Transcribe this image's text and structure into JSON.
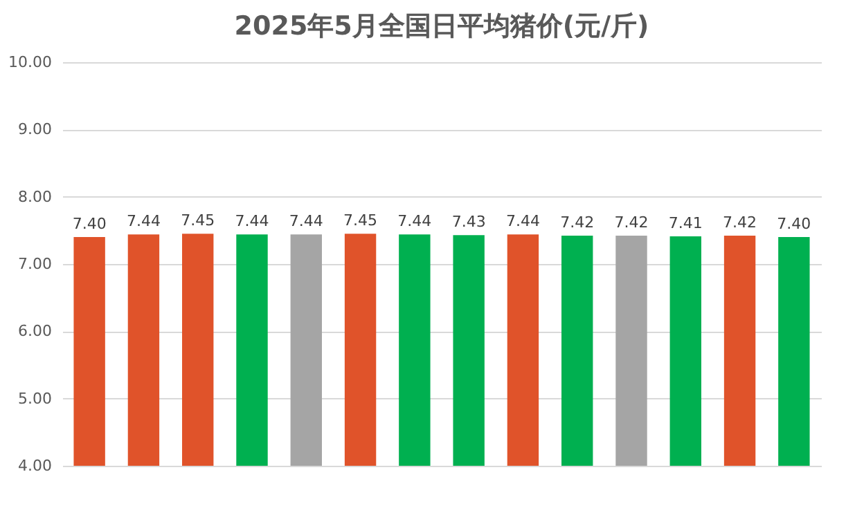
{
  "chart_data": {
    "type": "bar",
    "title": "2025年5月全国日平均猪价(元/斤)",
    "categories": [
      null,
      null,
      null,
      null,
      null,
      null,
      null,
      null,
      null,
      null,
      null,
      null,
      null,
      null
    ],
    "values": [
      7.4,
      7.44,
      7.45,
      7.44,
      7.44,
      7.45,
      7.44,
      7.43,
      7.44,
      7.42,
      7.42,
      7.41,
      7.42,
      7.4
    ],
    "value_labels": [
      "7.40",
      "7.44",
      "7.45",
      "7.44",
      "7.44",
      "7.45",
      "7.44",
      "7.43",
      "7.44",
      "7.42",
      "7.42",
      "7.41",
      "7.42",
      "7.40"
    ],
    "colors": [
      "#e0532a",
      "#e0532a",
      "#e0532a",
      "#00b050",
      "#a5a5a5",
      "#e0532a",
      "#00b050",
      "#00b050",
      "#e0532a",
      "#00b050",
      "#a5a5a5",
      "#00b050",
      "#e0532a",
      "#00b050"
    ],
    "ylim": [
      4,
      10
    ],
    "yticks": [
      {
        "value": 4,
        "label": "4.00"
      },
      {
        "value": 5,
        "label": "5.00"
      },
      {
        "value": 6,
        "label": "6.00"
      },
      {
        "value": 7,
        "label": "7.00"
      },
      {
        "value": 8,
        "label": "8.00"
      },
      {
        "value": 9,
        "label": "9.00"
      },
      {
        "value": 10,
        "label": "10.00"
      }
    ],
    "grid": "y",
    "tick_labels": "y"
  }
}
